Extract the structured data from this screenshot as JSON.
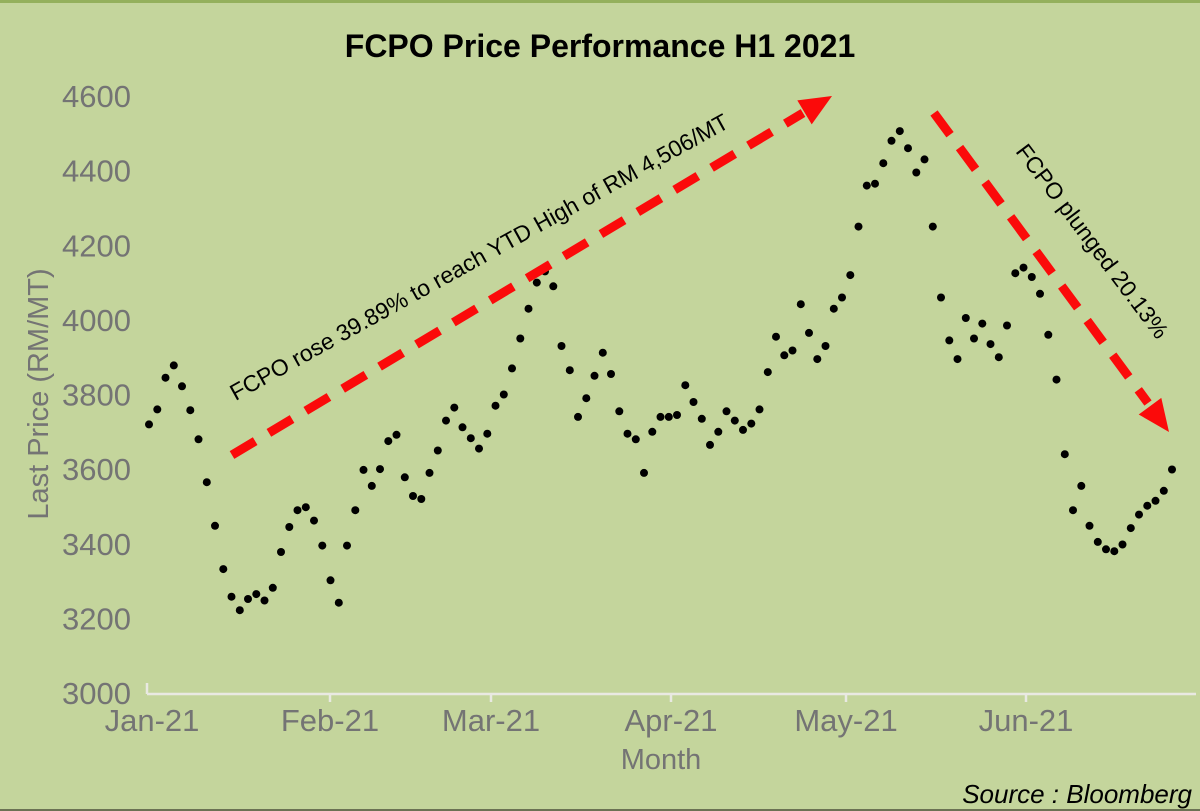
{
  "chart_data": {
    "type": "scatter",
    "title": "FCPO Price Performance H1 2021",
    "xlabel": "Month",
    "ylabel": "Last Price (RM/MT)",
    "source": "Source : Bloomberg",
    "x_tick_labels": [
      "Jan-21",
      "Feb-21",
      "Mar-21",
      "Apr-21",
      "May-21",
      "Jun-21"
    ],
    "y_ticks": [
      3000,
      3200,
      3400,
      3600,
      3800,
      4000,
      4200,
      4400,
      4600
    ],
    "ylim": [
      3000,
      4600
    ],
    "grid": false,
    "legend": false,
    "marker": "dot",
    "series_name": "FCPO last price, daily, H1 2021 (values estimated from plot)",
    "values": [
      3720,
      3760,
      3845,
      3878,
      3822,
      3758,
      3680,
      3565,
      3448,
      3332,
      3258,
      3222,
      3252,
      3265,
      3248,
      3282,
      3378,
      3445,
      3490,
      3498,
      3462,
      3395,
      3302,
      3242,
      3395,
      3490,
      3598,
      3555,
      3600,
      3675,
      3692,
      3578,
      3528,
      3520,
      3590,
      3650,
      3730,
      3765,
      3712,
      3683,
      3655,
      3695,
      3770,
      3800,
      3870,
      3950,
      4030,
      4100,
      4130,
      4090,
      3930,
      3865,
      3740,
      3790,
      3850,
      3912,
      3855,
      3755,
      3695,
      3680,
      3590,
      3700,
      3740,
      3740,
      3745,
      3825,
      3780,
      3735,
      3665,
      3700,
      3755,
      3730,
      3705,
      3722,
      3760,
      3860,
      3955,
      3905,
      3918,
      4042,
      3965,
      3895,
      3930,
      4030,
      4060,
      4120,
      4250,
      4360,
      4365,
      4420,
      4480,
      4506,
      4460,
      4395,
      4430,
      4250,
      4060,
      3945,
      3895,
      4005,
      3950,
      3990,
      3935,
      3900,
      3985,
      4125,
      4140,
      4115,
      4070,
      3960,
      3840,
      3640,
      3490,
      3555,
      3448,
      3405,
      3385,
      3380,
      3398,
      3442,
      3478,
      3502,
      3515,
      3542,
      3599
    ],
    "key_points": {
      "start": 3720,
      "rally_low": 3222,
      "ytd_high": 4506,
      "end": 3599
    },
    "annotations": [
      {
        "text": "FCPO rose 39.89% to reach YTD High of RM 4,506/MT",
        "angle_deg": -29
      },
      {
        "text": "FCPO plunged 20.13%",
        "angle_deg": 53
      }
    ],
    "colors": {
      "background": "#c4d59c",
      "points": "#000000",
      "arrows": "#fb0a0a",
      "axis_text": "#747474",
      "axis_line": "#e9e9e2",
      "title_text": "#000000"
    }
  }
}
